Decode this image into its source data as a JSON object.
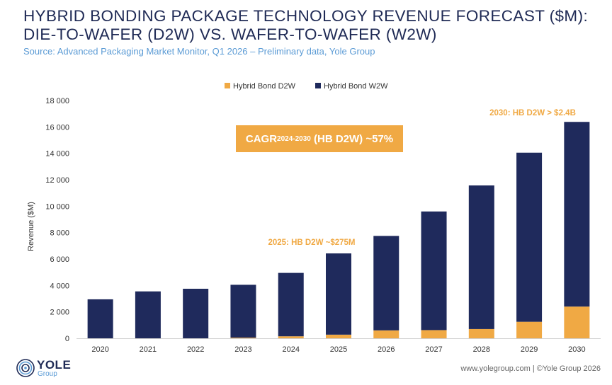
{
  "header": {
    "title_line1": "HYBRID BONDING PACKAGE TECHNOLOGY REVENUE FORECAST ($M):",
    "title_line2": "DIE-TO-WAFER (D2W) VS. WAFER-TO-WAFER (W2W)",
    "source": "Source: Advanced Packaging Market Monitor, Q1 2026 – Preliminary data, Yole Group"
  },
  "chart_data": {
    "type": "bar",
    "stacked": true,
    "categories": [
      "2020",
      "2021",
      "2022",
      "2023",
      "2024",
      "2025",
      "2026",
      "2027",
      "2028",
      "2029",
      "2030"
    ],
    "series": [
      {
        "name": "Hybrid Bond D2W",
        "color": "#f0a944",
        "values": [
          0,
          0,
          0,
          50,
          150,
          275,
          600,
          620,
          700,
          1250,
          2400
        ]
      },
      {
        "name": "Hybrid Bond W2W",
        "color": "#1f2a5c",
        "values": [
          2950,
          3550,
          3750,
          4000,
          4800,
          6150,
          7150,
          8980,
          10870,
          12800,
          13980
        ]
      }
    ],
    "ylabel": "Revenue ($M)",
    "ylim": [
      0,
      18000
    ],
    "yticks": [
      "0",
      "2 000",
      "4 000",
      "6 000",
      "8 000",
      "10 000",
      "12 000",
      "14 000",
      "16 000",
      "18 000"
    ],
    "grid": false,
    "legend_position": "top-center",
    "annotations": {
      "a2025": "2025: HB D2W ~$275M",
      "a2030": "2030: HB D2W > $2.4B",
      "cagr_main": "CAGR",
      "cagr_sub": "2024-2030",
      "cagr_rest": " (HB D2W) ~57%"
    }
  },
  "footer": {
    "logo_word": "YOLE",
    "logo_sub": "Group",
    "credit": "www.yolegroup.com | ©Yole Group 2026"
  },
  "colors": {
    "accent": "#f0a944",
    "navy": "#1f2a5c",
    "source_blue": "#5b9bd5"
  },
  "icons": {
    "logo": "yole-swirl-icon"
  }
}
